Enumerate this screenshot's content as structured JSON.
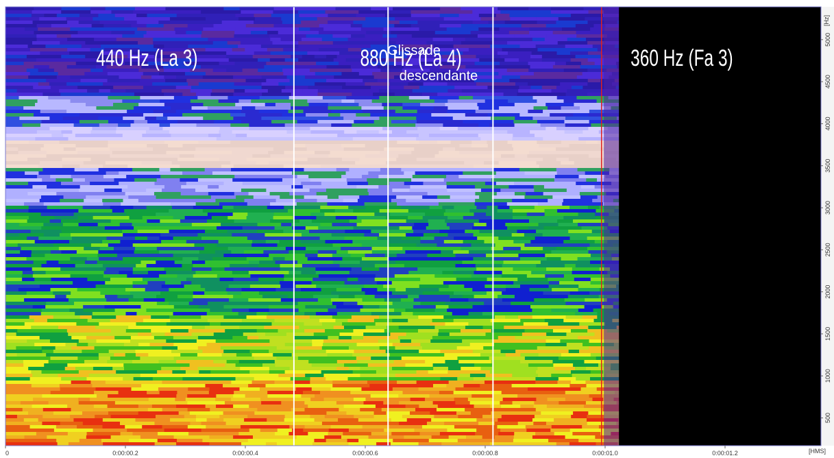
{
  "chart_data": {
    "type": "spectrogram",
    "x_label": "[HMS]",
    "y_label": "[Hz]",
    "xlim": [
      0,
      1.36
    ],
    "ylim": [
      170,
      5390
    ],
    "xticks": [
      0,
      {
        "value": 0.2,
        "label": "0:00:00.2"
      },
      {
        "value": 0.4,
        "label": "0:00:00.4"
      },
      {
        "value": 0.6,
        "label": "0:00:00.6"
      },
      {
        "value": 0.8,
        "label": "0:00:00.8"
      },
      {
        "value": 1.0,
        "label": "0:00:01.0"
      },
      {
        "value": 1.2,
        "label": "0:00:01.2"
      }
    ],
    "yticks": [
      500,
      1000,
      1500,
      2000,
      2500,
      3000,
      3500,
      4000,
      4500,
      5000
    ],
    "markers": [
      0.481,
      0.638,
      0.813
    ],
    "cursor": 0.994,
    "data_end": 1.023,
    "annotations": [
      "440 Hz (La 3)",
      "880 Hz (La 4)",
      "Glissade",
      "descendante",
      "360 Hz (Fa 3)"
    ]
  }
}
